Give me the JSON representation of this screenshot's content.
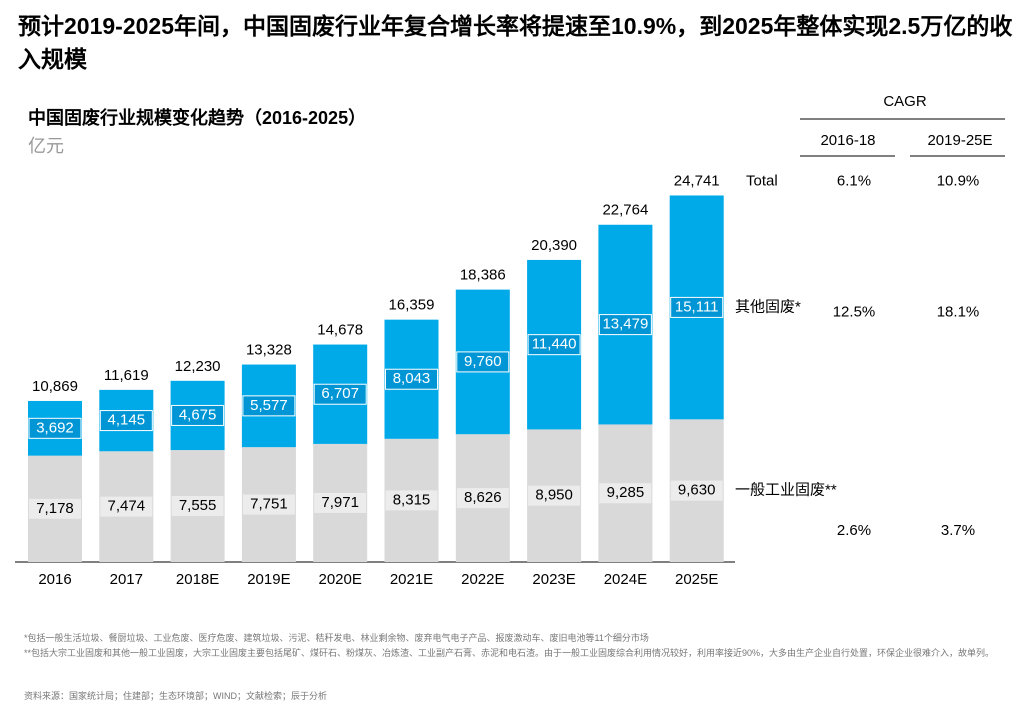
{
  "title": "预计2019-2025年间，中国固废行业年复合增长率将提速至10.9%，到2025年整体实现2.5万亿的收入规模",
  "chart_data": {
    "type": "stacked_bar",
    "title": "中国固废行业规模变化趋势（2016-2025）",
    "unit": "亿元",
    "categories": [
      "2016",
      "2017",
      "2018E",
      "2019E",
      "2020E",
      "2021E",
      "2022E",
      "2023E",
      "2024E",
      "2025E"
    ],
    "series": [
      {
        "name": "一般工业固废**",
        "color": "#d9d9d9",
        "values": [
          7178,
          7474,
          7555,
          7751,
          7971,
          8315,
          8626,
          8950,
          9285,
          9630
        ],
        "value_labels": [
          "7,178",
          "7,474",
          "7,555",
          "7,751",
          "7,971",
          "8,315",
          "8,626",
          "8,950",
          "9,285",
          "9,630"
        ]
      },
      {
        "name": "其他固废*",
        "color": "#00a9e8",
        "values": [
          3692,
          4145,
          4675,
          5577,
          6707,
          8043,
          9760,
          11440,
          13479,
          15111
        ],
        "value_labels": [
          "3,692",
          "4,145",
          "4,675",
          "5,577",
          "6,707",
          "8,043",
          "9,760",
          "11,440",
          "13,479",
          "15,111"
        ]
      }
    ],
    "totals": [
      10869,
      11619,
      12230,
      13328,
      14678,
      16359,
      18386,
      20390,
      22764,
      24741
    ],
    "total_labels": [
      "10,869",
      "11,619",
      "12,230",
      "13,328",
      "14,678",
      "16,359",
      "18,386",
      "20,390",
      "22,764",
      "24,741"
    ],
    "ylim": [
      0,
      27000
    ]
  },
  "cagr": {
    "title": "CAGR",
    "columns": [
      "2016-18",
      "2019-25E"
    ],
    "total_label": "Total",
    "total": [
      "6.1%",
      "10.9%"
    ],
    "other": [
      "12.5%",
      "18.1%"
    ],
    "industrial": [
      "2.6%",
      "3.7%"
    ]
  },
  "notes": [
    "*包括一般生活垃圾、餐厨垃圾、工业危废、医疗危废、建筑垃圾、污泥、秸秆发电、林业剩余物、废弃电气电子产品、报废激动车、废旧电池等11个细分市场",
    "**包括大宗工业固废和其他一般工业固废，大宗工业固废主要包括尾矿、煤矸石、粉煤灰、冶炼渣、工业副产石膏、赤泥和电石渣。由于一般工业固废综合利用情况较好，利用率接近90%，大多由生产企业自行处置，环保企业很难介入，故单列。"
  ],
  "source": "资料来源：国家统计局；住建部；生态环境部；WIND；文献检索；辰于分析"
}
